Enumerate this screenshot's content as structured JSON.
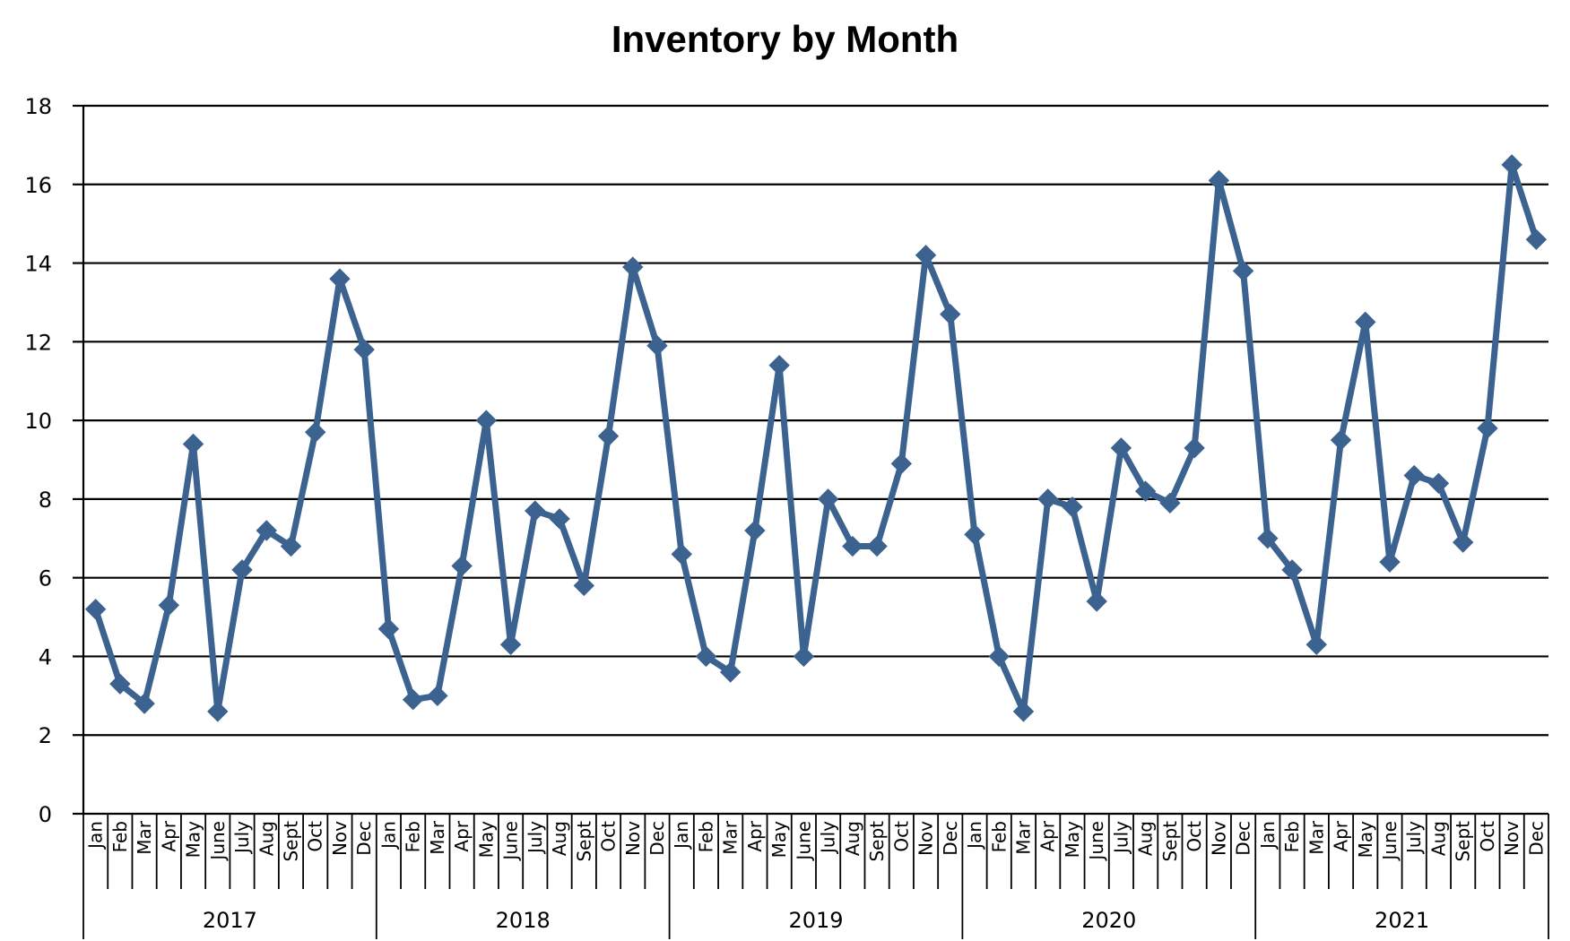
{
  "chart_data": {
    "type": "line",
    "title": "Inventory by Month",
    "xlabel": "",
    "ylabel": "",
    "ylim": [
      0,
      18
    ],
    "yticks": [
      0,
      2,
      4,
      6,
      8,
      10,
      12,
      14,
      16,
      18
    ],
    "grid": "horizontal",
    "legend": "none",
    "line_color": "#3c6290",
    "months": [
      "Jan",
      "Feb",
      "Mar",
      "Apr",
      "May",
      "June",
      "July",
      "Aug",
      "Sept",
      "Oct",
      "Nov",
      "Dec"
    ],
    "years": [
      "2017",
      "2018",
      "2019",
      "2020",
      "2021"
    ],
    "series": [
      {
        "values": [
          5.2,
          3.3,
          2.8,
          5.3,
          9.4,
          2.6,
          6.2,
          7.2,
          6.8,
          9.7,
          13.6,
          11.8,
          4.7,
          2.9,
          3.0,
          6.3,
          10.0,
          4.3,
          7.7,
          7.5,
          5.8,
          9.6,
          13.9,
          11.9,
          6.6,
          4.0,
          3.6,
          7.2,
          11.4,
          4.0,
          8.0,
          6.8,
          6.8,
          8.9,
          14.2,
          12.7,
          7.1,
          4.0,
          2.6,
          8.0,
          7.8,
          5.4,
          9.3,
          8.2,
          7.9,
          9.3,
          16.1,
          13.8,
          7.0,
          6.2,
          4.3,
          9.5,
          12.5,
          6.4,
          8.6,
          8.4,
          6.9,
          9.8,
          16.5,
          14.6
        ]
      }
    ]
  }
}
